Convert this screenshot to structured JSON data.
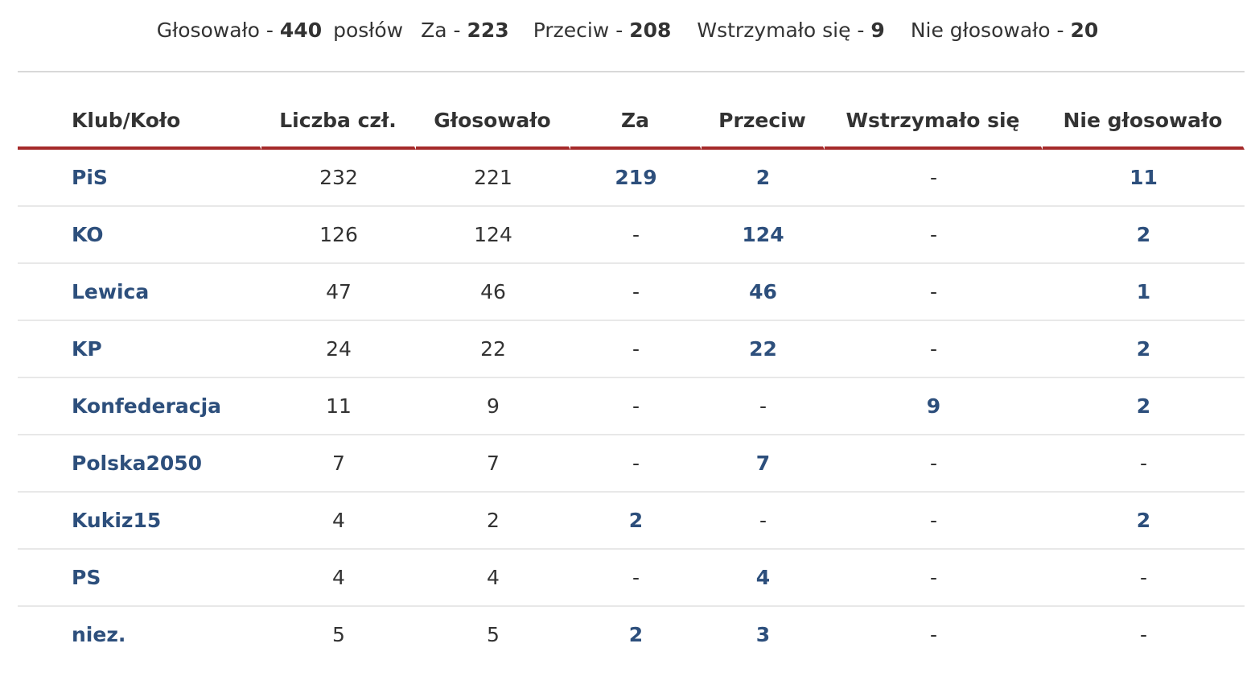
{
  "summary": {
    "voted_label": "Głosowało - ",
    "voted_value": "440",
    "voted_suffix": "posłów",
    "za_label": "Za - ",
    "za_value": "223",
    "przeciw_label": "Przeciw - ",
    "przeciw_value": "208",
    "abstain_label": "Wstrzymało się - ",
    "abstain_value": "9",
    "notvoted_label": "Nie głosowało - ",
    "notvoted_value": "20"
  },
  "table": {
    "headers": {
      "club": "Klub/Koło",
      "members": "Liczba czł.",
      "voted": "Głosowało",
      "za": "Za",
      "przeciw": "Przeciw",
      "abstain": "Wstrzymało się",
      "notvoted": "Nie głosowało"
    },
    "rows": [
      {
        "club": "PiS",
        "members": "232",
        "voted": "221",
        "za": "219",
        "przeciw": "2",
        "abstain": "-",
        "notvoted": "11"
      },
      {
        "club": "KO",
        "members": "126",
        "voted": "124",
        "za": "-",
        "przeciw": "124",
        "abstain": "-",
        "notvoted": "2"
      },
      {
        "club": "Lewica",
        "members": "47",
        "voted": "46",
        "za": "-",
        "przeciw": "46",
        "abstain": "-",
        "notvoted": "1"
      },
      {
        "club": "KP",
        "members": "24",
        "voted": "22",
        "za": "-",
        "przeciw": "22",
        "abstain": "-",
        "notvoted": "2"
      },
      {
        "club": "Konfederacja",
        "members": "11",
        "voted": "9",
        "za": "-",
        "przeciw": "-",
        "abstain": "9",
        "notvoted": "2"
      },
      {
        "club": "Polska2050",
        "members": "7",
        "voted": "7",
        "za": "-",
        "przeciw": "7",
        "abstain": "-",
        "notvoted": "-"
      },
      {
        "club": "Kukiz15",
        "members": "4",
        "voted": "2",
        "za": "2",
        "przeciw": "-",
        "abstain": "-",
        "notvoted": "2"
      },
      {
        "club": "PS",
        "members": "4",
        "voted": "4",
        "za": "-",
        "przeciw": "4",
        "abstain": "-",
        "notvoted": "-"
      },
      {
        "club": "niez.",
        "members": "5",
        "voted": "5",
        "za": "2",
        "przeciw": "3",
        "abstain": "-",
        "notvoted": "-"
      }
    ]
  },
  "colors": {
    "link": "#2d4f7c",
    "text": "#333333",
    "header_rule": "#a52a2a",
    "row_rule": "#e8e8e8"
  }
}
